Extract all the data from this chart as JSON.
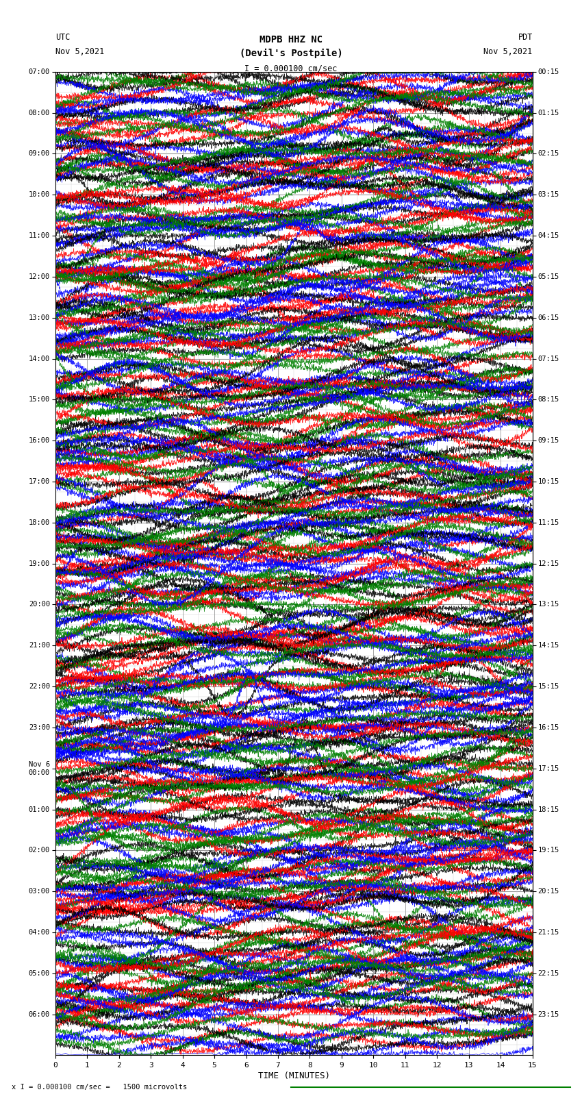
{
  "title_line1": "MDPB HHZ NC",
  "title_line2": "(Devil's Postpile)",
  "scale_label": "I = 0.000100 cm/sec",
  "bottom_label": "x I = 0.000100 cm/sec =   1500 microvolts",
  "utc_label_line1": "UTC",
  "utc_label_line2": "Nov 5,2021",
  "pdt_label_line1": "PDT",
  "pdt_label_line2": "Nov 5,2021",
  "xlabel": "TIME (MINUTES)",
  "left_yticks_labels": [
    "07:00",
    "08:00",
    "09:00",
    "10:00",
    "11:00",
    "12:00",
    "13:00",
    "14:00",
    "15:00",
    "16:00",
    "17:00",
    "18:00",
    "19:00",
    "20:00",
    "21:00",
    "22:00",
    "23:00",
    "Nov 6\n00:00",
    "01:00",
    "02:00",
    "03:00",
    "04:00",
    "05:00",
    "06:00"
  ],
  "right_yticks_labels": [
    "00:15",
    "01:15",
    "02:15",
    "03:15",
    "04:15",
    "05:15",
    "06:15",
    "07:15",
    "08:15",
    "09:15",
    "10:15",
    "11:15",
    "12:15",
    "13:15",
    "14:15",
    "15:15",
    "16:15",
    "17:15",
    "18:15",
    "19:15",
    "20:15",
    "21:15",
    "22:15",
    "23:15"
  ],
  "xticks": [
    0,
    1,
    2,
    3,
    4,
    5,
    6,
    7,
    8,
    9,
    10,
    11,
    12,
    13,
    14,
    15
  ],
  "num_rows": 24,
  "minutes_per_row": 15,
  "bg_color": "#ffffff",
  "grid_major_color": "#999999",
  "grid_minor_color": "#cccccc",
  "trace_colors": [
    "black",
    "red",
    "blue",
    "green"
  ],
  "num_traces": 16,
  "trace_amplitude": 0.45,
  "drift_per_minute": 0.08,
  "noise_amplitude": 0.04,
  "signal_amplitude": 0.35
}
